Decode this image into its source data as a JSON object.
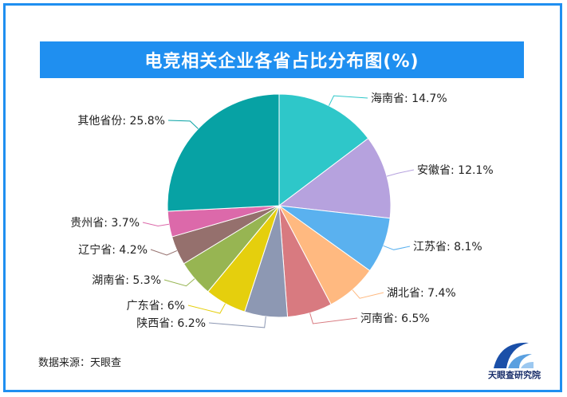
{
  "title": "电竞相关企业各省占比分布图(%)",
  "source": "数据来源：天眼查",
  "logo_text": "天眼查研究院",
  "chart_data": {
    "type": "pie",
    "title": "电竞相关企业各省占比分布图(%)",
    "slices": [
      {
        "label": "海南省",
        "value": 14.7,
        "display": "14.7%",
        "color": "#2ec7c9"
      },
      {
        "label": "安徽省",
        "value": 12.1,
        "display": "12.1%",
        "color": "#b6a2de"
      },
      {
        "label": "江苏省",
        "value": 8.1,
        "display": "8.1%",
        "color": "#5ab1ef"
      },
      {
        "label": "湖北省",
        "value": 7.4,
        "display": "7.4%",
        "color": "#ffb980"
      },
      {
        "label": "河南省",
        "value": 6.5,
        "display": "6.5%",
        "color": "#d87a80"
      },
      {
        "label": "陕西省",
        "value": 6.2,
        "display": "6.2%",
        "color": "#8d98b3"
      },
      {
        "label": "广东省",
        "value": 6,
        "display": "6%",
        "color": "#e5cf0d"
      },
      {
        "label": "湖南省",
        "value": 5.3,
        "display": "5.3%",
        "color": "#97b552"
      },
      {
        "label": "辽宁省",
        "value": 4.2,
        "display": "4.2%",
        "color": "#95706d"
      },
      {
        "label": "贵州省",
        "value": 3.7,
        "display": "3.7%",
        "color": "#dc69aa"
      },
      {
        "label": "其他省份",
        "value": 25.8,
        "display": "25.8%",
        "color": "#07a2a4"
      }
    ]
  }
}
